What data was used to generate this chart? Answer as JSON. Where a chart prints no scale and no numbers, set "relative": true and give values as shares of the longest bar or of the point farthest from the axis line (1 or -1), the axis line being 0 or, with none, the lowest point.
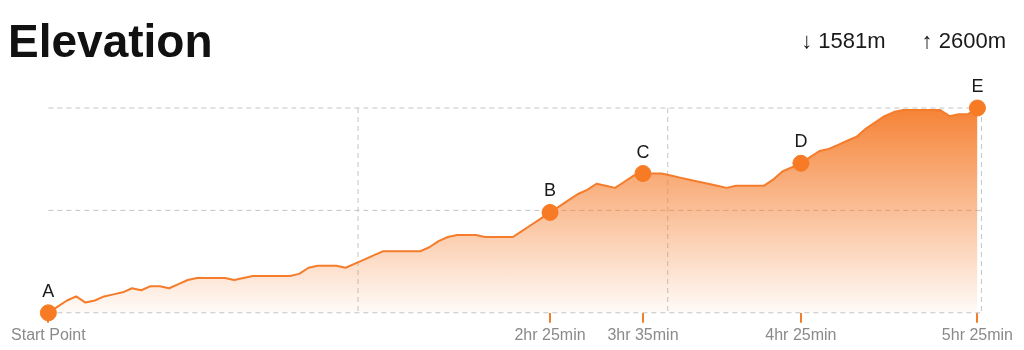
{
  "chart_data": {
    "type": "area",
    "title": "Elevation",
    "relative": true,
    "grid": true,
    "legend": false,
    "annotations": [
      "↓ 1581m",
      "↑ 2600m",
      {
        "text": "A",
        "x": "Start Point",
        "y": 0
      },
      {
        "text": "B",
        "x": "2hr 25min",
        "y": 0.49
      },
      {
        "text": "C",
        "x": "3hr 35min",
        "y": 0.68
      },
      {
        "text": "D",
        "x": "4hr 25min",
        "y": 0.73
      },
      {
        "text": "E",
        "x": "5hr 25min",
        "y": 1
      }
    ],
    "categories": [
      "Start Point",
      null,
      null,
      null,
      null,
      null,
      null,
      null,
      null,
      null,
      null,
      null,
      null,
      null,
      null,
      null,
      null,
      null,
      null,
      null,
      null,
      null,
      null,
      null,
      null,
      null,
      null,
      null,
      null,
      null,
      null,
      null,
      null,
      null,
      null,
      null,
      null,
      null,
      null,
      null,
      null,
      null,
      null,
      null,
      null,
      null,
      null,
      null,
      null,
      null,
      null,
      null,
      null,
      null,
      "2hr 25min",
      null,
      null,
      null,
      null,
      null,
      null,
      null,
      null,
      null,
      "3hr 35min",
      null,
      null,
      null,
      null,
      null,
      null,
      null,
      null,
      null,
      null,
      null,
      null,
      null,
      null,
      null,
      null,
      "4hr 25min",
      null,
      null,
      null,
      null,
      null,
      null,
      null,
      null,
      null,
      null,
      null,
      null,
      null,
      null,
      null,
      null,
      null,
      null,
      "5hr 25min"
    ],
    "series": [
      {
        "color": "#f57c2b",
        "marker": "none",
        "line_style": "solid",
        "values": [
          0,
          0.03,
          0.06,
          0.08,
          0.05,
          0.06,
          0.08,
          0.09,
          0.1,
          0.12,
          0.11,
          0.13,
          0.13,
          0.12,
          0.14,
          0.16,
          0.17,
          0.17,
          0.17,
          0.17,
          0.16,
          0.17,
          0.18,
          0.18,
          0.18,
          0.18,
          0.18,
          0.19,
          0.22,
          0.23,
          0.23,
          0.23,
          0.22,
          0.24,
          0.26,
          0.28,
          0.3,
          0.3,
          0.3,
          0.3,
          0.3,
          0.32,
          0.35,
          0.37,
          0.38,
          0.38,
          0.38,
          0.37,
          0.37,
          0.37,
          0.37,
          0.4,
          0.43,
          0.46,
          0.49,
          0.52,
          0.55,
          0.58,
          0.6,
          0.63,
          0.62,
          0.61,
          0.64,
          0.67,
          0.68,
          0.68,
          0.68,
          0.67,
          0.66,
          0.65,
          0.64,
          0.63,
          0.62,
          0.61,
          0.62,
          0.62,
          0.62,
          0.62,
          0.65,
          0.69,
          0.71,
          0.73,
          0.76,
          0.79,
          0.8,
          0.82,
          0.84,
          0.86,
          0.9,
          0.93,
          0.96,
          0.98,
          0.99,
          0.99,
          0.99,
          0.99,
          0.99,
          0.96,
          0.97,
          0.97,
          1
        ]
      },
      {
        "type": "scatter",
        "color": "#f77b25",
        "marker": "circle",
        "x": [
          "Start Point",
          "2hr 25min",
          "3hr 35min",
          "4hr 25min",
          "5hr 25min"
        ],
        "values": [
          0,
          0.49,
          0.68,
          0.73,
          1
        ]
      }
    ]
  }
}
